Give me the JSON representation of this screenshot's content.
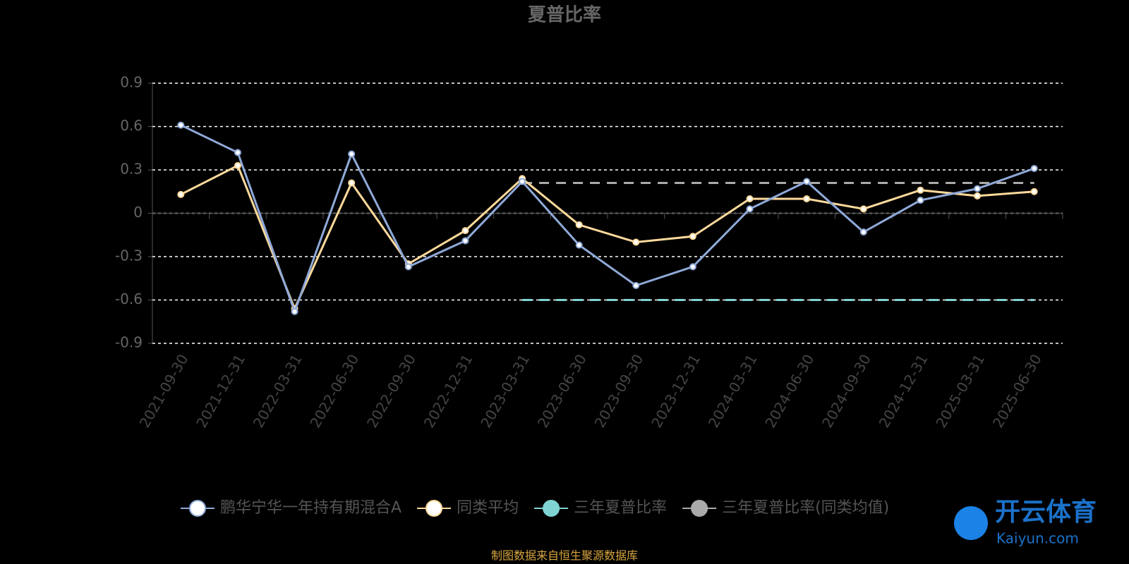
{
  "chart_data": {
    "type": "line",
    "title": "夏普比率",
    "categories": [
      "2021-09-30",
      "2021-12-31",
      "2022-03-31",
      "2022-06-30",
      "2022-09-30",
      "2022-12-31",
      "2023-03-31",
      "2023-06-30",
      "2023-09-30",
      "2023-12-31",
      "2024-03-31",
      "2024-06-30",
      "2024-09-30",
      "2024-12-31",
      "2025-03-31",
      "2025-06-30"
    ],
    "series": [
      {
        "name": "鹏华宁华一年持有期混合A",
        "color": "#8fa9d8",
        "line_style": "solid",
        "markers": true,
        "values": [
          0.61,
          0.42,
          -0.68,
          0.41,
          -0.37,
          -0.19,
          0.22,
          -0.22,
          -0.5,
          -0.37,
          0.03,
          0.22,
          -0.13,
          0.09,
          0.17,
          0.31
        ]
      },
      {
        "name": "同类平均",
        "color": "#fdd99b",
        "line_style": "solid",
        "markers": true,
        "values": [
          0.13,
          0.33,
          -0.66,
          0.21,
          -0.35,
          -0.12,
          0.24,
          -0.08,
          -0.2,
          -0.16,
          0.1,
          0.1,
          0.03,
          0.16,
          0.12,
          0.15
        ]
      },
      {
        "name": "三年夏普比率",
        "color": "#7fd3d3",
        "line_style": "dashed",
        "markers": false,
        "values": [
          null,
          null,
          null,
          null,
          null,
          null,
          -0.6,
          -0.6,
          -0.6,
          -0.6,
          -0.6,
          -0.6,
          -0.6,
          -0.6,
          -0.6,
          -0.6
        ]
      },
      {
        "name": "三年夏普比率(同类均值)",
        "color": "#aaaaaa",
        "line_style": "dashed",
        "markers": false,
        "values": [
          null,
          null,
          null,
          null,
          null,
          null,
          0.21,
          0.21,
          0.21,
          0.21,
          0.21,
          0.21,
          0.21,
          0.21,
          0.21,
          0.21
        ]
      }
    ],
    "ylim": [
      -0.9,
      0.9
    ],
    "yticks": [
      -0.9,
      -0.6,
      -0.3,
      0,
      0.3,
      0.6,
      0.9
    ],
    "grid": true,
    "source": "制图数据来自恒生聚源数据库",
    "watermark": {
      "brand": "开云体育",
      "url": "Kaiyun.com"
    }
  }
}
